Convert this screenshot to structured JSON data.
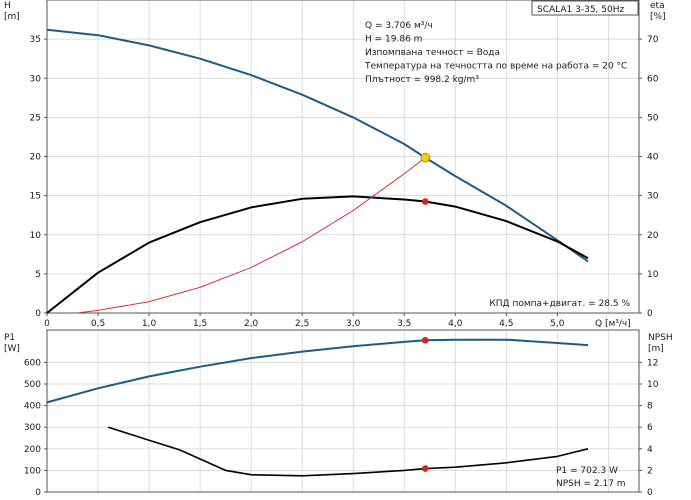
{
  "chart_data": [
    {
      "type": "line",
      "title": "SCALA1 3-35, 50Hz",
      "xlabel": "Q [м³/ч]",
      "ylabel": "H\n[m]",
      "ylabel_right": "eta\n[%]",
      "xlim": [
        0,
        5.8
      ],
      "ylim": [
        0,
        40
      ],
      "ylim_right": [
        0,
        80
      ],
      "x_ticks": [
        0,
        0.5,
        1.0,
        1.5,
        2.0,
        2.5,
        3.0,
        3.5,
        4.0,
        4.5,
        5.0
      ],
      "x_tick_labels": [
        "0",
        "0,5",
        "1,0",
        "1,5",
        "2,0",
        "2,5",
        "3,0",
        "3,5",
        "4,0",
        "4,5",
        "5,0"
      ],
      "y_ticks": [
        0,
        5,
        10,
        15,
        20,
        25,
        30,
        35
      ],
      "y_ticks_right": [
        0,
        10,
        20,
        30,
        40,
        50,
        60,
        70
      ],
      "grid": true,
      "series": [
        {
          "color": "#1f5a85",
          "axis": "left",
          "x": [
            0,
            0.5,
            1.0,
            1.5,
            2.0,
            2.5,
            3.0,
            3.5,
            3.706,
            4.0,
            4.5,
            5.0,
            5.3
          ],
          "y": [
            36.2,
            35.5,
            34.2,
            32.5,
            30.4,
            27.9,
            25.0,
            21.6,
            19.86,
            17.5,
            13.7,
            9.3,
            6.6
          ]
        },
        {
          "color": "#000000",
          "axis": "right",
          "x": [
            0,
            0.5,
            1.0,
            1.5,
            2.0,
            2.5,
            3.0,
            3.5,
            3.706,
            4.0,
            4.5,
            5.0,
            5.3
          ],
          "y": [
            0,
            10.3,
            18.0,
            23.2,
            27.0,
            29.2,
            29.8,
            29.0,
            28.5,
            27.2,
            23.5,
            18.3,
            14.0
          ]
        },
        {
          "color": "#d42020",
          "axis": "left",
          "x": [
            0.3,
            0.5,
            1.0,
            1.5,
            2.0,
            2.5,
            3.0,
            3.5,
            3.706
          ],
          "y": [
            0,
            0.35,
            1.44,
            3.28,
            5.82,
            9.1,
            13.1,
            17.8,
            19.86
          ]
        }
      ],
      "operating_point": {
        "x": 3.706,
        "y": 19.86,
        "eta": 28.5
      },
      "annotations": [
        "Q = 3.706 м³/ч",
        "H = 19.86 m",
        "Изпомпвана течност = Вода",
        "Температура на течността по време на работа = 20 °C",
        "Плътност = 998.2 kg/m³"
      ],
      "eta_note": "КПД помпа+двигат. = 28.5 %"
    },
    {
      "type": "line",
      "xlabel": "",
      "ylabel": "P1\n[W]",
      "ylabel_right": "NPSH\n[m]",
      "xlim": [
        0,
        5.8
      ],
      "ylim": [
        0,
        750
      ],
      "ylim_right": [
        0,
        15
      ],
      "y_ticks": [
        0,
        100,
        200,
        300,
        400,
        500,
        600
      ],
      "y_ticks_right": [
        0,
        2,
        4,
        6,
        8,
        10,
        12
      ],
      "grid": true,
      "series": [
        {
          "color": "#1f5a85",
          "axis": "left",
          "x": [
            0,
            0.5,
            1.0,
            1.5,
            2.0,
            2.5,
            3.0,
            3.5,
            3.706,
            4.0,
            4.5,
            5.0,
            5.3
          ],
          "y": [
            415,
            480,
            535,
            580,
            620,
            650,
            675,
            695,
            702.3,
            705,
            705,
            690,
            680
          ]
        },
        {
          "color": "#000000",
          "axis": "right",
          "x": [
            0.6,
            1.0,
            1.3,
            1.75,
            2.0,
            2.5,
            3.0,
            3.5,
            3.706,
            4.0,
            4.5,
            5.0,
            5.3
          ],
          "y": [
            6.0,
            4.8,
            3.9,
            2.0,
            1.6,
            1.5,
            1.7,
            2.0,
            2.17,
            2.3,
            2.7,
            3.3,
            4.0
          ]
        }
      ],
      "operating_point": {
        "x": 3.706,
        "p1": 702.3,
        "npsh": 2.17
      },
      "annotations": [
        "P1 = 702.3 W",
        "NPSH = 2.17 m"
      ]
    }
  ]
}
